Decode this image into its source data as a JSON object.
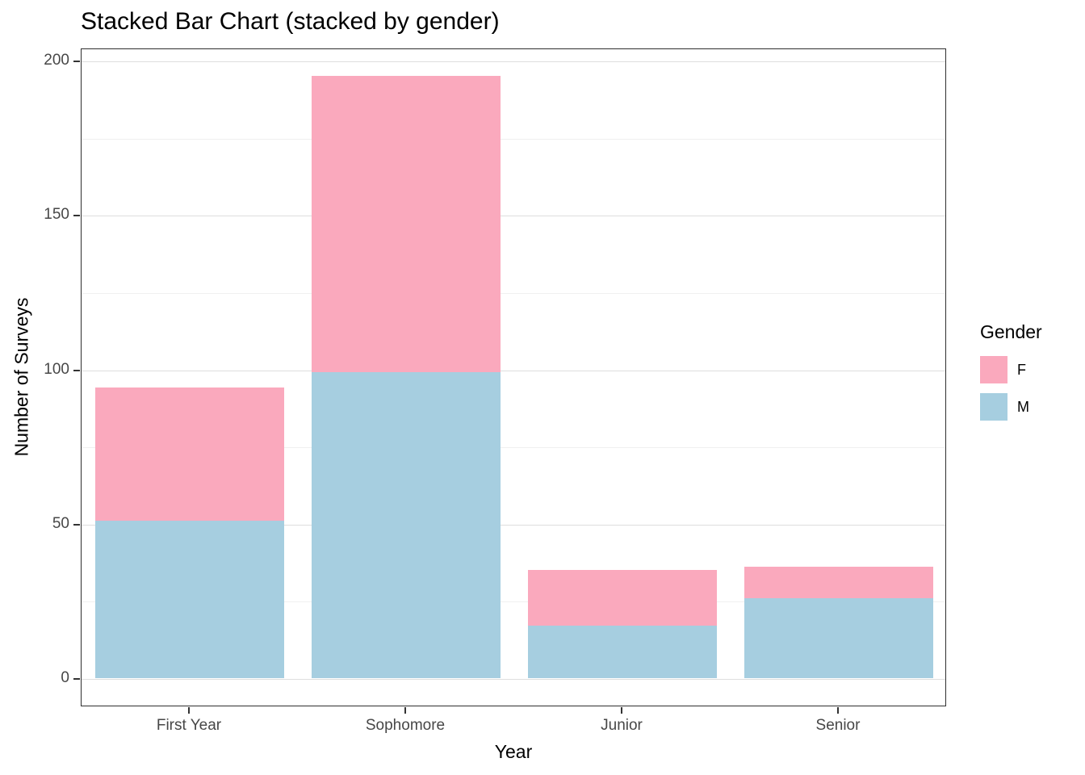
{
  "title": "Stacked Bar Chart (stacked by gender)",
  "chart_data": {
    "type": "bar",
    "stacked": true,
    "title": "Stacked Bar Chart (stacked by gender)",
    "xlabel": "Year",
    "ylabel": "Number of Surveys",
    "categories": [
      "First Year",
      "Sophomore",
      "Junior",
      "Senior"
    ],
    "series": [
      {
        "name": "F",
        "color": "#FAA9BD",
        "values": [
          43,
          96,
          18,
          10
        ]
      },
      {
        "name": "M",
        "color": "#A6CEE0",
        "values": [
          51,
          99,
          17,
          26
        ]
      }
    ],
    "stack_order_bottom_to_top": [
      "M",
      "F"
    ],
    "totals": [
      94,
      195,
      35,
      36
    ],
    "y_ticks": [
      0,
      50,
      100,
      150,
      200
    ],
    "y_minor_ticks": [
      25,
      75,
      125,
      175
    ],
    "ylim": [
      0,
      200
    ],
    "grid": true,
    "legend": {
      "title": "Gender",
      "position": "right",
      "entries": [
        "F",
        "M"
      ]
    }
  },
  "legend": {
    "title": "Gender"
  },
  "colors": {
    "F": "#FAA9BD",
    "M": "#A6CEE0",
    "grid_major": "#dedede",
    "grid_minor": "#f0f0f0",
    "panel_border": "#2f2f2f",
    "background": "#ffffff"
  }
}
